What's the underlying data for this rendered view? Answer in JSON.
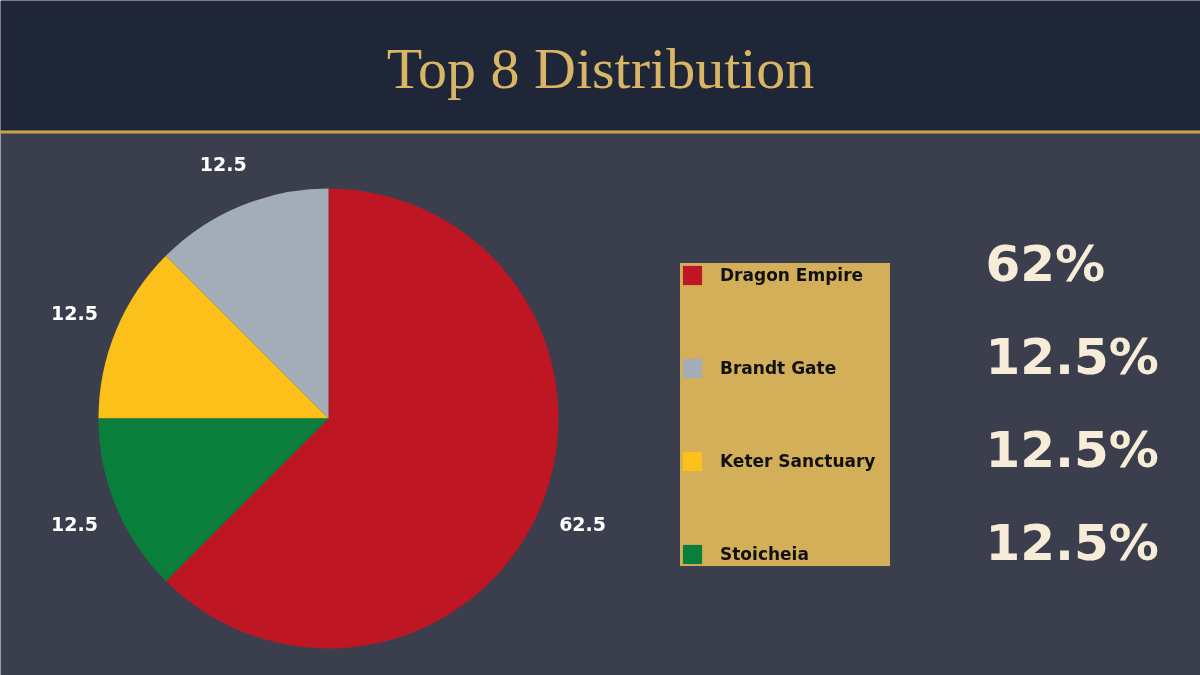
{
  "chart_data": {
    "type": "pie",
    "title": "Top 8 Distribution",
    "categories": [
      "Dragon Empire",
      "Brandt Gate",
      "Keter Sanctuary",
      "Stoicheia"
    ],
    "values": [
      62.5,
      12.5,
      12.5,
      12.5
    ],
    "colors": [
      "#be1622",
      "#a3adb8",
      "#fcc01b",
      "#0a7f3c"
    ],
    "data_labels": true,
    "legend": "right",
    "annotations": [
      "62%",
      "12.5%",
      "12.5%",
      "12.5%"
    ]
  }
}
